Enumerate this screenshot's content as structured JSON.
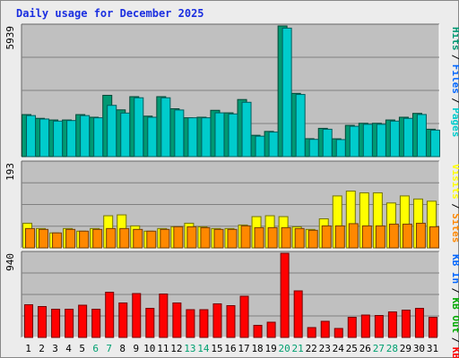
{
  "chart_data": {
    "type": "bar",
    "title": "Daily usage for December 2025",
    "categories": [
      "1",
      "2",
      "3",
      "4",
      "5",
      "6",
      "7",
      "8",
      "9",
      "10",
      "11",
      "12",
      "13",
      "14",
      "15",
      "16",
      "17",
      "18",
      "19",
      "20",
      "21",
      "22",
      "23",
      "24",
      "25",
      "26",
      "27",
      "28",
      "29",
      "30",
      "31"
    ],
    "weekend_days": [
      "6",
      "7",
      "13",
      "14",
      "20",
      "21",
      "27",
      "28"
    ],
    "panels": [
      {
        "max_label": "5939",
        "ylim": [
          0,
          5939
        ],
        "series": [
          {
            "name": "Hits",
            "color": "#009973",
            "values": [
              1910,
              1740,
              1665,
              1665,
              1910,
              1790,
              2785,
              2125,
              2725,
              1840,
              2725,
              2175,
              1765,
              1790,
              2105,
              1990,
              2595,
              970,
              1145,
              5939,
              2875,
              815,
              1285,
              810,
              1420,
              1515,
              1515,
              1665,
              1790,
              1965,
              1245
            ]
          },
          {
            "name": "Files",
            "color": "#0066ff",
            "values": [
              0,
              0,
              0,
              0,
              0,
              0,
              0,
              0,
              0,
              0,
              0,
              0,
              0,
              0,
              0,
              0,
              0,
              0,
              0,
              0,
              0,
              0,
              0,
              0,
              0,
              0,
              0,
              0,
              0,
              0,
              0
            ]
          },
          {
            "name": "Pages",
            "color": "#00cccc",
            "values": [
              1865,
              1710,
              1615,
              1640,
              1865,
              1765,
              2330,
              1980,
              2675,
              1790,
              2675,
              2120,
              1765,
              1765,
              1990,
              1940,
              2470,
              930,
              1115,
              5840,
              2825,
              785,
              1245,
              775,
              1380,
              1470,
              1470,
              1615,
              1740,
              1915,
              1205
            ]
          }
        ]
      },
      {
        "max_label": "193",
        "ylim": [
          0,
          193
        ],
        "series": [
          {
            "name": "Visits",
            "color": "#ffff00",
            "values": [
              56,
              44,
              34,
              44,
              38,
              44,
              73,
              75,
              50,
              38,
              44,
              48,
              56,
              48,
              44,
              44,
              52,
              71,
              73,
              71,
              48,
              42,
              66,
              118,
              129,
              125,
              125,
              102,
              118,
              111,
              106
            ]
          },
          {
            "name": "Sites",
            "color": "#ff8800",
            "values": [
              44,
              42,
              34,
              42,
              38,
              42,
              44,
              44,
              42,
              38,
              42,
              48,
              48,
              46,
              42,
              42,
              50,
              46,
              46,
              46,
              44,
              40,
              50,
              50,
              55,
              50,
              50,
              54,
              54,
              56,
              48
            ]
          }
        ]
      },
      {
        "max_label": "940",
        "ylim": [
          0,
          940
        ],
        "series": [
          {
            "name": "KB In",
            "color": "#0066ff",
            "values": [
              0,
              0,
              0,
              0,
              0,
              0,
              0,
              0,
              0,
              0,
              0,
              0,
              0,
              0,
              0,
              0,
              0,
              0,
              0,
              0,
              0,
              0,
              0,
              0,
              0,
              0,
              0,
              0,
              0,
              0,
              0
            ]
          },
          {
            "name": "KB Out",
            "color": "#00aa00",
            "values": [
              0,
              0,
              0,
              0,
              0,
              0,
              0,
              0,
              0,
              0,
              0,
              0,
              0,
              0,
              0,
              0,
              0,
              0,
              0,
              0,
              0,
              0,
              0,
              0,
              0,
              0,
              0,
              0,
              0,
              0,
              0
            ]
          },
          {
            "name": "KB F",
            "color": "#ff0000",
            "values": [
              365,
              345,
              315,
              315,
              360,
              315,
              505,
              385,
              490,
              325,
              485,
              385,
              310,
              310,
              375,
              355,
              460,
              135,
              170,
              940,
              520,
              110,
              180,
              100,
              225,
              250,
              245,
              285,
              305,
              325,
              225
            ]
          }
        ]
      }
    ],
    "grid": true
  }
}
